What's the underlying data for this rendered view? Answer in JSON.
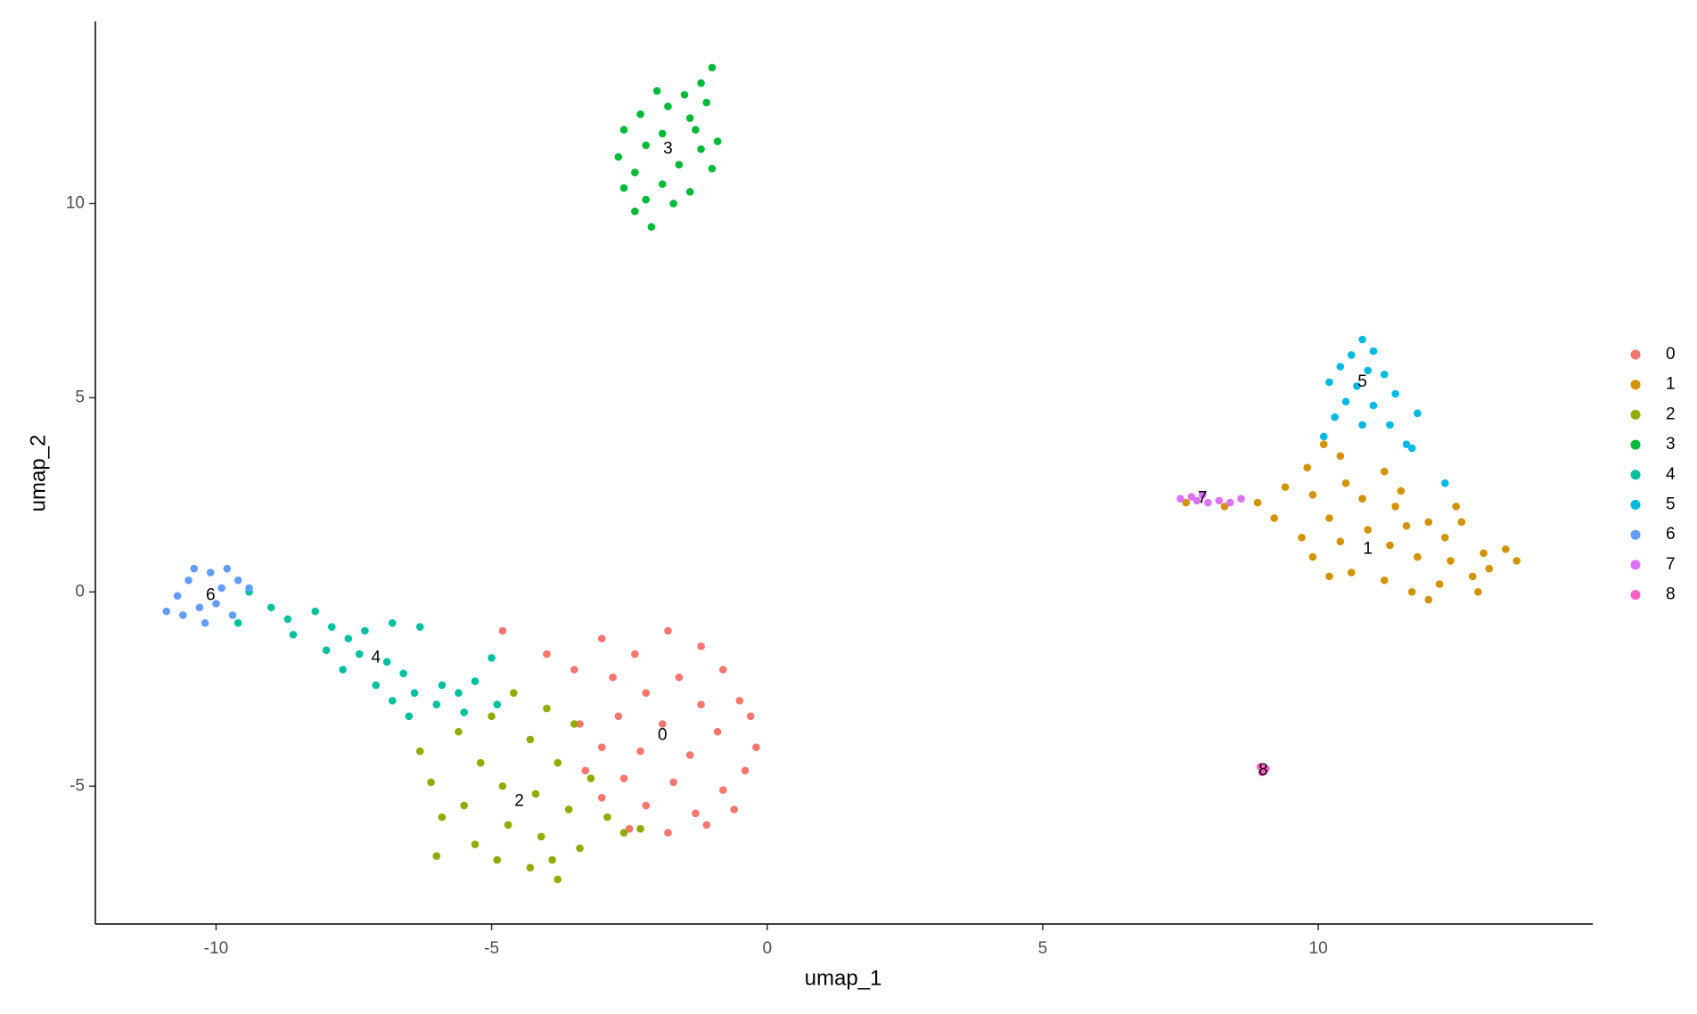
{
  "chart_data": {
    "type": "scatter",
    "xlabel": "umap_1",
    "ylabel": "umap_2",
    "xlim": [
      -12.19,
      14.98
    ],
    "ylim": [
      -8.55,
      14.69
    ],
    "xticks": [
      -10,
      -5,
      0,
      5,
      10
    ],
    "yticks": [
      -5,
      0,
      5,
      10
    ],
    "grid": false,
    "legend": "right",
    "series": [
      {
        "name": "0",
        "color": "#F8766D",
        "x": [
          -1.8,
          -1.2,
          -2.4,
          -0.8,
          -1.6,
          -2.2,
          -0.5,
          -1.2,
          -3.0,
          -4.8,
          -4.0,
          -3.5,
          -2.8,
          -2.7,
          -1.9,
          -0.9,
          -0.2,
          -0.4,
          -1.4,
          -2.3,
          -3.0,
          -3.3,
          -2.6,
          -1.7,
          -0.8,
          -0.6,
          -1.3,
          -2.2,
          -3.0,
          -1.8,
          -2.5,
          -1.1,
          -3.4,
          -0.3
        ],
        "y": [
          -1.0,
          -1.4,
          -1.6,
          -2.0,
          -2.2,
          -2.6,
          -2.8,
          -2.9,
          -1.2,
          -1.0,
          -1.6,
          -2.0,
          -2.2,
          -3.2,
          -3.4,
          -3.6,
          -4.0,
          -4.6,
          -4.2,
          -4.1,
          -4.0,
          -4.6,
          -4.8,
          -4.9,
          -5.1,
          -5.6,
          -5.7,
          -5.5,
          -5.3,
          -6.2,
          -6.1,
          -6.0,
          -3.4,
          -3.2
        ]
      },
      {
        "name": "1",
        "color": "#D39200",
        "x": [
          7.6,
          8.3,
          8.9,
          9.2,
          9.4,
          9.8,
          10.1,
          10.4,
          9.9,
          10.5,
          10.8,
          11.2,
          11.4,
          10.2,
          9.7,
          9.9,
          10.4,
          10.9,
          11.3,
          11.6,
          12.0,
          12.3,
          12.6,
          11.8,
          12.4,
          13.0,
          13.4,
          13.6,
          12.8,
          12.2,
          11.7,
          11.2,
          10.6,
          10.2,
          12.0,
          12.9,
          13.1,
          11.5,
          12.5
        ],
        "y": [
          2.3,
          2.2,
          2.3,
          1.9,
          2.7,
          3.2,
          3.8,
          3.5,
          2.5,
          2.8,
          2.4,
          3.1,
          2.2,
          1.9,
          1.4,
          0.9,
          1.3,
          1.6,
          1.2,
          1.7,
          1.8,
          1.4,
          1.8,
          0.9,
          0.8,
          1.0,
          1.1,
          0.8,
          0.4,
          0.2,
          0.0,
          0.3,
          0.5,
          0.4,
          -0.2,
          0.0,
          0.6,
          2.6,
          2.2
        ]
      },
      {
        "name": "2",
        "color": "#93AA00",
        "x": [
          -4.6,
          -4.0,
          -5.0,
          -3.5,
          -5.6,
          -4.3,
          -6.3,
          -5.2,
          -3.8,
          -3.2,
          -6.1,
          -4.8,
          -4.2,
          -5.5,
          -3.6,
          -2.9,
          -5.9,
          -4.7,
          -2.6,
          -4.1,
          -5.3,
          -3.4,
          -6.0,
          -4.9,
          -4.3,
          -3.8,
          -3.9,
          -2.3
        ],
        "y": [
          -2.6,
          -3.0,
          -3.2,
          -3.4,
          -3.6,
          -3.8,
          -4.1,
          -4.4,
          -4.4,
          -4.8,
          -4.9,
          -5.0,
          -5.2,
          -5.5,
          -5.6,
          -5.8,
          -5.8,
          -6.0,
          -6.2,
          -6.3,
          -6.5,
          -6.6,
          -6.8,
          -6.9,
          -7.1,
          -7.4,
          -6.9,
          -6.1
        ]
      },
      {
        "name": "3",
        "color": "#00BA38",
        "x": [
          -1.0,
          -1.2,
          -1.5,
          -1.1,
          -1.8,
          -2.3,
          -1.4,
          -2.6,
          -1.9,
          -0.9,
          -1.2,
          -2.2,
          -2.7,
          -1.6,
          -1.0,
          -2.4,
          -1.9,
          -2.6,
          -1.4,
          -2.2,
          -1.7,
          -2.4,
          -2.1,
          -1.3,
          -2.0
        ],
        "y": [
          13.5,
          13.1,
          12.8,
          12.6,
          12.5,
          12.3,
          12.2,
          11.9,
          11.8,
          11.6,
          11.4,
          11.5,
          11.2,
          11.0,
          10.9,
          10.8,
          10.5,
          10.4,
          10.3,
          10.1,
          10.0,
          9.8,
          9.4,
          11.9,
          12.9
        ]
      },
      {
        "name": "4",
        "color": "#00C19F",
        "x": [
          -9.4,
          -9.0,
          -9.6,
          -8.7,
          -8.2,
          -8.6,
          -7.9,
          -7.6,
          -8.0,
          -7.3,
          -6.8,
          -6.3,
          -7.4,
          -6.9,
          -7.7,
          -6.6,
          -7.1,
          -6.4,
          -5.9,
          -6.0,
          -5.6,
          -5.3,
          -6.8,
          -5.0,
          -4.9,
          -6.5,
          -5.5
        ],
        "y": [
          0.0,
          -0.4,
          -0.8,
          -0.7,
          -0.5,
          -1.1,
          -0.9,
          -1.2,
          -1.5,
          -1.0,
          -0.8,
          -0.9,
          -1.6,
          -1.8,
          -2.0,
          -2.1,
          -2.4,
          -2.6,
          -2.4,
          -2.9,
          -2.6,
          -2.3,
          -2.8,
          -1.7,
          -2.9,
          -3.2,
          -3.1
        ]
      },
      {
        "name": "5",
        "color": "#00B9E3",
        "x": [
          10.8,
          11.0,
          10.6,
          10.4,
          10.9,
          11.2,
          10.2,
          10.7,
          11.4,
          10.5,
          11.0,
          11.8,
          10.3,
          10.8,
          11.3,
          10.1,
          11.7,
          11.6,
          12.3
        ],
        "y": [
          6.5,
          6.2,
          6.1,
          5.8,
          5.7,
          5.6,
          5.4,
          5.3,
          5.1,
          4.9,
          4.8,
          4.6,
          4.5,
          4.3,
          4.3,
          4.0,
          3.7,
          3.8,
          2.8
        ]
      },
      {
        "name": "6",
        "color": "#619CFF",
        "x": [
          -10.9,
          -10.7,
          -10.5,
          -10.3,
          -10.1,
          -9.9,
          -9.8,
          -9.6,
          -10.0,
          -10.2,
          -9.7,
          -10.6,
          -9.4,
          -10.4
        ],
        "y": [
          -0.5,
          -0.1,
          0.3,
          -0.4,
          0.5,
          0.1,
          0.6,
          0.3,
          -0.3,
          -0.8,
          -0.6,
          -0.6,
          0.1,
          0.6
        ]
      },
      {
        "name": "7",
        "color": "#DB72FB",
        "x": [
          7.5,
          7.7,
          7.9,
          8.0,
          8.2,
          8.4,
          8.6,
          7.8
        ],
        "y": [
          2.4,
          2.45,
          2.5,
          2.3,
          2.35,
          2.3,
          2.4,
          2.35
        ]
      },
      {
        "name": "8",
        "color": "#FF61C3",
        "x": [
          8.95,
          9.0,
          9.05,
          8.98
        ],
        "y": [
          -4.5,
          -4.6,
          -4.55,
          -4.65
        ]
      }
    ],
    "labels": [
      {
        "text": "0",
        "x": -1.9,
        "y": -3.7
      },
      {
        "text": "1",
        "x": 10.9,
        "y": 1.1
      },
      {
        "text": "2",
        "x": -4.5,
        "y": -5.4
      },
      {
        "text": "3",
        "x": -1.8,
        "y": 11.4
      },
      {
        "text": "4",
        "x": -7.1,
        "y": -1.7
      },
      {
        "text": "5",
        "x": 10.8,
        "y": 5.4
      },
      {
        "text": "6",
        "x": -10.1,
        "y": -0.1
      },
      {
        "text": "7",
        "x": 7.9,
        "y": 2.4
      },
      {
        "text": "8",
        "x": 9.0,
        "y": -4.6
      }
    ]
  }
}
